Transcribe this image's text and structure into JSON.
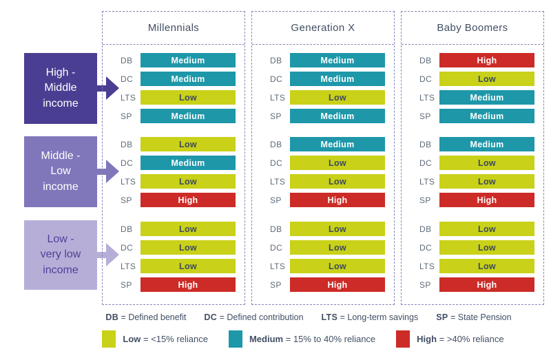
{
  "palette": {
    "low": "#c9d118",
    "medium": "#1e97a9",
    "high": "#cd2b27",
    "purple_dark": "#4a3e92",
    "purple_mid": "#8077bb",
    "purple_light": "#b7aed8",
    "dash": "#8084b8",
    "text_dark": "#414e63",
    "label_grey": "#5d6a78"
  },
  "income_boxes": [
    {
      "text": "High -\nMiddle\nincome"
    },
    {
      "text": "Middle -\nLow\nincome"
    },
    {
      "text": "Low -\nvery low\nincome"
    }
  ],
  "chart_data": {
    "type": "heatmap",
    "columns": [
      "Millennials",
      "Generation X",
      "Baby Boomers"
    ],
    "rows": [
      "DB",
      "DC",
      "LTS",
      "SP"
    ],
    "income_groups": [
      "High - Middle income",
      "Middle - Low income",
      "Low - very low income"
    ],
    "values": [
      [
        [
          "Medium",
          "Medium",
          "Low",
          "Medium"
        ],
        [
          "Medium",
          "Medium",
          "Low",
          "Medium"
        ],
        [
          "High",
          "Low",
          "Medium",
          "Medium"
        ]
      ],
      [
        [
          "Low",
          "Medium",
          "Low",
          "High"
        ],
        [
          "Medium",
          "Low",
          "Low",
          "High"
        ],
        [
          "Medium",
          "Low",
          "Low",
          "High"
        ]
      ],
      [
        [
          "Low",
          "Low",
          "Low",
          "High"
        ],
        [
          "Low",
          "Low",
          "Low",
          "High"
        ],
        [
          "Low",
          "Low",
          "Low",
          "High"
        ]
      ]
    ],
    "definitions": [
      {
        "abbr": "DB",
        "rest": "= Defined benefit"
      },
      {
        "abbr": "DC",
        "rest": "= Defined contribution"
      },
      {
        "abbr": "LTS",
        "rest": "= Long-term savings"
      },
      {
        "abbr": "SP",
        "rest": "= State Pension"
      }
    ],
    "legend": [
      {
        "label": "Low",
        "rest": "= <15% reliance",
        "color": "#c9d118"
      },
      {
        "label": "Medium",
        "rest": "= 15% to 40% reliance",
        "color": "#1e97a9"
      },
      {
        "label": "High",
        "rest": "= >40% reliance",
        "color": "#cd2b27"
      }
    ],
    "legend_position": "bottom"
  }
}
